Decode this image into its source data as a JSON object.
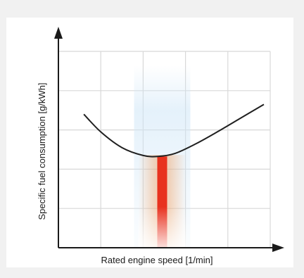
{
  "chart_data": {
    "type": "line",
    "xlabel": "Rated engine speed [1/min]",
    "ylabel": "Specific fuel consumption [g/kWh]",
    "grid": true,
    "x_gridlines": 5,
    "y_gridlines": 5,
    "xlim": [
      0,
      100
    ],
    "ylim": [
      0,
      100
    ],
    "series": [
      {
        "values": [
          {
            "x": 12,
            "y": 68
          },
          {
            "x": 20,
            "y": 59
          },
          {
            "x": 30,
            "y": 51
          },
          {
            "x": 40,
            "y": 47
          },
          {
            "x": 47,
            "y": 46.5
          },
          {
            "x": 55,
            "y": 48
          },
          {
            "x": 65,
            "y": 53
          },
          {
            "x": 75,
            "y": 59
          },
          {
            "x": 86,
            "y": 66
          },
          {
            "x": 97,
            "y": 73
          }
        ],
        "color": "#1f1f1f"
      }
    ],
    "highlight_band": {
      "x": 49,
      "y_top": 46.5,
      "color": "#e8321e"
    }
  }
}
